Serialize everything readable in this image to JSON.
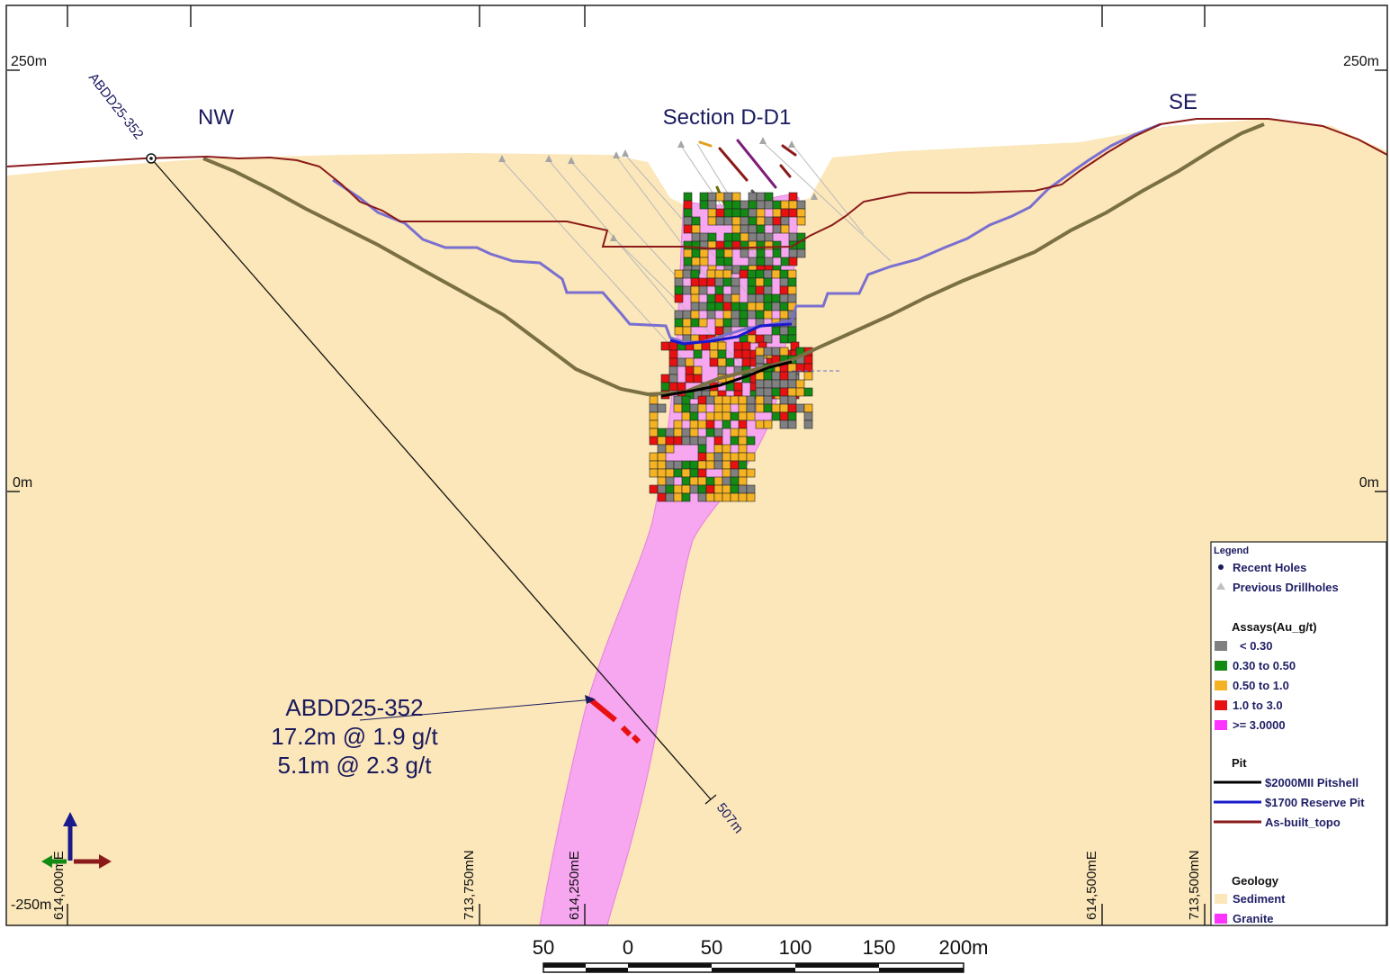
{
  "section": {
    "title": "Section D-D1",
    "dir_left": "NW",
    "dir_right": "SE"
  },
  "elevations": {
    "top_left": "250m",
    "top_right": "250m",
    "mid_left": "0m",
    "mid_right": "0m",
    "bottom_left": "-250m"
  },
  "grid_labels": {
    "e1": "614,000mE",
    "n1": "713,750mN",
    "e2": "614,250mE",
    "e3": "614,500mE",
    "n2": "713,500mN"
  },
  "hole": {
    "id": "ABDD25-352",
    "depth": "507m",
    "callout_id": "ABDD25-352",
    "intercept_1": "17.2m @ 1.9 g/t",
    "intercept_2": "5.1m @ 2.3 g/t"
  },
  "scale_bar": {
    "labels": [
      "50",
      "0",
      "50",
      "100",
      "150",
      "200m"
    ]
  },
  "legend": {
    "title": "Legend",
    "recent_holes": "Recent Holes",
    "previous_drillholes": "Previous Drillholes",
    "assays_title": "Assays(Au_g/t)",
    "assays": [
      {
        "label": "< 0.30",
        "color": "#808080"
      },
      {
        "label": "0.30 to 0.50",
        "color": "#138a13"
      },
      {
        "label": "0.50 to 1.0",
        "color": "#f5b323"
      },
      {
        "label": "1.0 to 3.0",
        "color": "#e81010"
      },
      {
        "label": ">= 3.0000",
        "color": "#ff33ff"
      }
    ],
    "pit_title": "Pit",
    "pits": [
      {
        "label": "$2000MII Pitshell",
        "color": "#000000"
      },
      {
        "label": "$1700 Reserve Pit",
        "color": "#1a1acc"
      },
      {
        "label": "As-built_topo",
        "color": "#8b1a1a"
      }
    ],
    "geology_title": "Geology",
    "geology": [
      {
        "label": "Sediment",
        "color": "#fbe7b9"
      },
      {
        "label": "Granite",
        "color": "#ff33ff"
      }
    ]
  },
  "colors": {
    "sediment": "#fbe7b9",
    "granite_body": "#f7a6f0",
    "topo": "#8b1a1a",
    "reserve_pit": "#7a6fd0",
    "pitshell_trace": "#7a7044",
    "text_navy": "#1a1a5e"
  }
}
